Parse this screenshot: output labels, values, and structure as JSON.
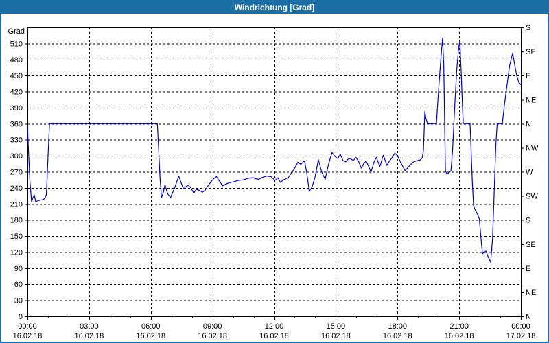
{
  "window": {
    "title": "Windrichtung [Grad]"
  },
  "colors": {
    "frame": "#1c6ea6",
    "titlebar_bg": "#1c6ea6",
    "titlebar_text": "#ffffff",
    "plot_background": "#ffffff",
    "axis": "#000000",
    "grid": "#000000",
    "line": "#0000cc",
    "tick_label": "#000000"
  },
  "chart_data": {
    "type": "line",
    "title": "Windrichtung [Grad]",
    "y_left_label": "Grad",
    "ylim": [
      0,
      540
    ],
    "y_left_ticks": [
      0,
      30,
      60,
      90,
      120,
      150,
      180,
      210,
      240,
      270,
      300,
      330,
      360,
      390,
      420,
      450,
      480,
      510
    ],
    "y_right_ticks": [
      {
        "value": 0,
        "label": "N"
      },
      {
        "value": 45,
        "label": "NE"
      },
      {
        "value": 90,
        "label": "E"
      },
      {
        "value": 135,
        "label": "SE"
      },
      {
        "value": 180,
        "label": "S"
      },
      {
        "value": 225,
        "label": "SW"
      },
      {
        "value": 270,
        "label": "W"
      },
      {
        "value": 315,
        "label": "NW"
      },
      {
        "value": 360,
        "label": "N"
      },
      {
        "value": 405,
        "label": "NE"
      },
      {
        "value": 450,
        "label": "E"
      },
      {
        "value": 495,
        "label": "SE"
      },
      {
        "value": 540,
        "label": "S"
      }
    ],
    "xlim_hours": [
      0,
      24
    ],
    "x_minor_step_hours": 1,
    "x_major_ticks": [
      {
        "hour": 0,
        "time": "00:00",
        "date": "16.02.18"
      },
      {
        "hour": 3,
        "time": "03:00",
        "date": "16.02.18"
      },
      {
        "hour": 6,
        "time": "06:00",
        "date": "16.02.18"
      },
      {
        "hour": 9,
        "time": "09:00",
        "date": "16.02.18"
      },
      {
        "hour": 12,
        "time": "12:00",
        "date": "16.02.18"
      },
      {
        "hour": 15,
        "time": "15:00",
        "date": "16.02.18"
      },
      {
        "hour": 18,
        "time": "18:00",
        "date": "16.02.18"
      },
      {
        "hour": 21,
        "time": "21:00",
        "date": "16.02.18"
      },
      {
        "hour": 24,
        "time": "00:00",
        "date": "17.02.18"
      }
    ],
    "grid": {
      "style": "dashed",
      "color": "#000000",
      "h_step": 30,
      "v_step_hours": 3
    },
    "legend": "none",
    "series": [
      {
        "name": "Windrichtung",
        "unit": "Grad",
        "color": "#0000cc",
        "points": [
          [
            0,
            357
          ],
          [
            0.05,
            310
          ],
          [
            0.12,
            252
          ],
          [
            0.2,
            214
          ],
          [
            0.27,
            222
          ],
          [
            0.33,
            227
          ],
          [
            0.4,
            214
          ],
          [
            0.5,
            216
          ],
          [
            0.62,
            217
          ],
          [
            0.75,
            218
          ],
          [
            0.85,
            221
          ],
          [
            0.92,
            228
          ],
          [
            1.0,
            300
          ],
          [
            1.07,
            360
          ],
          [
            6.32,
            360
          ],
          [
            6.38,
            315
          ],
          [
            6.45,
            258
          ],
          [
            6.52,
            222
          ],
          [
            6.6,
            230
          ],
          [
            6.69,
            246
          ],
          [
            6.82,
            229
          ],
          [
            6.96,
            222
          ],
          [
            7.16,
            240
          ],
          [
            7.36,
            262
          ],
          [
            7.5,
            247
          ],
          [
            7.59,
            238
          ],
          [
            7.7,
            242
          ],
          [
            7.82,
            245
          ],
          [
            7.95,
            240
          ],
          [
            8.09,
            230
          ],
          [
            8.2,
            237
          ],
          [
            8.32,
            236
          ],
          [
            8.52,
            232
          ],
          [
            8.65,
            236
          ],
          [
            8.75,
            242
          ],
          [
            8.9,
            250
          ],
          [
            9.05,
            257
          ],
          [
            9.19,
            261
          ],
          [
            9.35,
            252
          ],
          [
            9.49,
            244
          ],
          [
            9.7,
            248
          ],
          [
            9.85,
            250
          ],
          [
            10.0,
            251
          ],
          [
            10.25,
            254
          ],
          [
            10.49,
            255
          ],
          [
            10.75,
            258
          ],
          [
            10.98,
            259
          ],
          [
            11.1,
            257
          ],
          [
            11.25,
            256
          ],
          [
            11.45,
            260
          ],
          [
            11.65,
            262
          ],
          [
            11.85,
            261
          ],
          [
            12.05,
            254
          ],
          [
            12.18,
            259
          ],
          [
            12.31,
            250
          ],
          [
            12.45,
            255
          ],
          [
            12.58,
            257
          ],
          [
            12.7,
            260
          ],
          [
            12.82,
            267
          ],
          [
            12.95,
            274
          ],
          [
            13.08,
            283
          ],
          [
            13.15,
            288
          ],
          [
            13.3,
            284
          ],
          [
            13.42,
            289
          ],
          [
            13.48,
            290
          ],
          [
            13.58,
            270
          ],
          [
            13.71,
            234
          ],
          [
            13.85,
            242
          ],
          [
            14.0,
            262
          ],
          [
            14.15,
            293
          ],
          [
            14.31,
            270
          ],
          [
            14.48,
            256
          ],
          [
            14.65,
            285
          ],
          [
            14.81,
            306
          ],
          [
            14.98,
            298
          ],
          [
            15.1,
            295
          ],
          [
            15.21,
            303
          ],
          [
            15.35,
            291
          ],
          [
            15.48,
            289
          ],
          [
            15.6,
            294
          ],
          [
            15.71,
            295
          ],
          [
            15.85,
            291
          ],
          [
            15.98,
            297
          ],
          [
            16.1,
            290
          ],
          [
            16.24,
            277
          ],
          [
            16.35,
            285
          ],
          [
            16.47,
            290
          ],
          [
            16.6,
            280
          ],
          [
            16.71,
            269
          ],
          [
            16.85,
            288
          ],
          [
            16.97,
            297
          ],
          [
            17.14,
            280
          ],
          [
            17.31,
            301
          ],
          [
            17.48,
            282
          ],
          [
            17.6,
            290
          ],
          [
            17.71,
            295
          ],
          [
            17.87,
            305
          ],
          [
            18.0,
            300
          ],
          [
            18.15,
            288
          ],
          [
            18.37,
            272
          ],
          [
            18.55,
            280
          ],
          [
            18.75,
            288
          ],
          [
            18.95,
            291
          ],
          [
            19.1,
            292
          ],
          [
            19.2,
            296
          ],
          [
            19.26,
            310
          ],
          [
            19.33,
            383
          ],
          [
            19.38,
            370
          ],
          [
            19.46,
            360
          ],
          [
            19.89,
            360
          ],
          [
            20.0,
            425
          ],
          [
            20.1,
            478
          ],
          [
            20.19,
            520
          ],
          [
            20.25,
            468
          ],
          [
            20.3,
            340
          ],
          [
            20.33,
            272
          ],
          [
            20.4,
            266
          ],
          [
            20.5,
            268
          ],
          [
            20.6,
            272
          ],
          [
            20.68,
            310
          ],
          [
            20.78,
            390
          ],
          [
            20.88,
            460
          ],
          [
            20.97,
            500
          ],
          [
            21.03,
            515
          ],
          [
            21.1,
            455
          ],
          [
            21.16,
            392
          ],
          [
            21.2,
            362
          ],
          [
            21.23,
            360
          ],
          [
            21.53,
            360
          ],
          [
            21.58,
            310
          ],
          [
            21.64,
            250
          ],
          [
            21.7,
            206
          ],
          [
            21.78,
            199
          ],
          [
            21.9,
            190
          ],
          [
            21.98,
            182
          ],
          [
            22.05,
            150
          ],
          [
            22.13,
            117
          ],
          [
            22.3,
            122
          ],
          [
            22.42,
            110
          ],
          [
            22.53,
            101
          ],
          [
            22.62,
            145
          ],
          [
            22.7,
            230
          ],
          [
            22.78,
            320
          ],
          [
            22.85,
            360
          ],
          [
            23.1,
            360
          ],
          [
            23.2,
            395
          ],
          [
            23.32,
            430
          ],
          [
            23.45,
            468
          ],
          [
            23.6,
            492
          ],
          [
            23.7,
            470
          ],
          [
            23.8,
            450
          ],
          [
            23.9,
            437
          ],
          [
            24,
            433
          ]
        ]
      }
    ]
  }
}
